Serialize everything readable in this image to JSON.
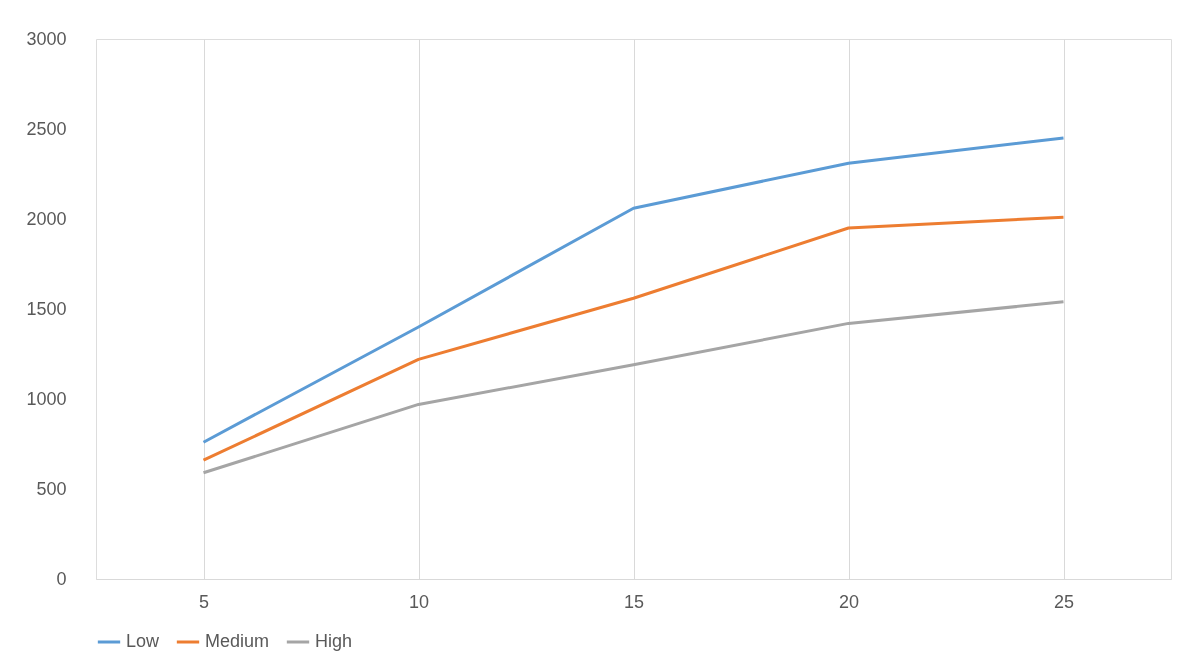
{
  "chart_data": {
    "type": "line",
    "categories": [
      "5",
      "10",
      "15",
      "20",
      "25"
    ],
    "series": [
      {
        "name": "Low",
        "color": "#5b9bd5",
        "values": [
          760,
          1400,
          2060,
          2310,
          2450
        ]
      },
      {
        "name": "Medium",
        "color": "#ed7d31",
        "values": [
          660,
          1220,
          1560,
          1950,
          2010
        ]
      },
      {
        "name": "High",
        "color": "#a5a5a5",
        "values": [
          590,
          970,
          1190,
          1420,
          1540
        ]
      }
    ],
    "ylim": [
      0,
      3000
    ],
    "yticks": [
      0,
      500,
      1000,
      1500,
      2000,
      2500,
      3000
    ],
    "grid": "x",
    "legend": "bottom",
    "marker": "none",
    "line_style": "solid"
  }
}
